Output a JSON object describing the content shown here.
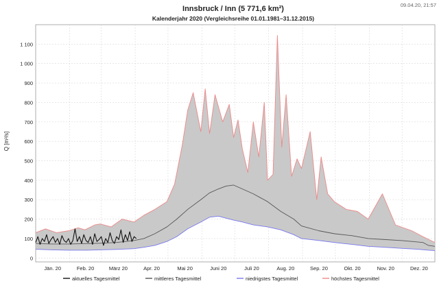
{
  "timestamp": "09.04.20, 21:57",
  "chart_data": {
    "type": "area",
    "title": "Innsbruck / Inn (5 771,6 km²)",
    "subtitle": "Kalenderjahr 2020 (Vergleichsreihe 01.01.1981–31.12.2015)",
    "ylabel": "Q [m³/s]",
    "ylim": [
      -20,
      1200
    ],
    "yticks": [
      0,
      100,
      200,
      300,
      400,
      500,
      600,
      700,
      800,
      900,
      1000,
      1100
    ],
    "ytick_labels": [
      "0",
      "100",
      "200",
      "300",
      "400",
      "500",
      "600",
      "700",
      "800",
      "900",
      "1 000",
      "1 100"
    ],
    "xlim": [
      1,
      366
    ],
    "x_unit": "day of year 2020",
    "month_labels": [
      "Jän. 20",
      "Feb. 20",
      "März 20",
      "Apr. 20",
      "Mai 20",
      "Juni 20",
      "Juli 20",
      "Aug. 20",
      "Sep. 20",
      "Okt. 20",
      "Nov. 20",
      "Dez. 20"
    ],
    "grid": true,
    "legend_position": "bottom",
    "series": [
      {
        "name": "aktuelles Tagesmittel",
        "color": "#111111",
        "x": [
          1,
          3,
          5,
          7,
          9,
          11,
          13,
          15,
          17,
          19,
          21,
          23,
          25,
          27,
          29,
          31,
          33,
          35,
          37,
          39,
          41,
          43,
          45,
          47,
          49,
          51,
          53,
          55,
          57,
          59,
          61,
          63,
          65,
          67,
          69,
          71,
          73,
          75,
          77,
          79,
          81,
          83,
          85,
          87,
          89,
          91,
          93
        ],
        "y": [
          80,
          110,
          70,
          100,
          85,
          120,
          75,
          95,
          110,
          80,
          100,
          70,
          115,
          90,
          80,
          100,
          70,
          90,
          150,
          85,
          110,
          75,
          120,
          90,
          80,
          110,
          70,
          125,
          85,
          95,
          110,
          65,
          100,
          80,
          130,
          90,
          75,
          110,
          95,
          145,
          80,
          120,
          90,
          135,
          85,
          110,
          100
        ]
      },
      {
        "name": "mittleres Tagesmittel",
        "color": "#555555",
        "x": [
          1,
          15,
          31,
          46,
          60,
          75,
          91,
          100,
          110,
          121,
          130,
          140,
          152,
          160,
          168,
          175,
          182,
          190,
          200,
          213,
          225,
          237,
          244,
          260,
          274,
          290,
          305,
          320,
          335,
          345,
          355,
          360,
          366
        ],
        "y": [
          75,
          72,
          72,
          74,
          76,
          80,
          90,
          100,
          125,
          160,
          200,
          250,
          300,
          335,
          355,
          370,
          375,
          355,
          330,
          290,
          240,
          200,
          165,
          140,
          125,
          115,
          100,
          95,
          90,
          85,
          80,
          65,
          60
        ]
      },
      {
        "name": "niedrigstes Tagesmittel",
        "color": "#7777ee",
        "x": [
          1,
          15,
          31,
          46,
          60,
          75,
          91,
          100,
          110,
          121,
          130,
          140,
          152,
          160,
          168,
          175,
          182,
          190,
          200,
          213,
          225,
          237,
          244,
          260,
          274,
          290,
          305,
          320,
          335,
          350,
          360,
          366
        ],
        "y": [
          45,
          42,
          40,
          40,
          42,
          44,
          48,
          55,
          65,
          85,
          110,
          150,
          185,
          210,
          215,
          205,
          195,
          185,
          170,
          160,
          145,
          120,
          100,
          90,
          80,
          70,
          60,
          55,
          50,
          45,
          40,
          38
        ]
      },
      {
        "name": "höchstes Tagesmittel",
        "color": "#ee8888",
        "x": [
          1,
          10,
          20,
          31,
          40,
          46,
          55,
          60,
          70,
          80,
          91,
          100,
          110,
          121,
          128,
          135,
          140,
          145,
          152,
          156,
          160,
          165,
          172,
          178,
          182,
          186,
          190,
          195,
          200,
          205,
          210,
          213,
          218,
          222,
          226,
          230,
          235,
          240,
          244,
          252,
          258,
          262,
          268,
          274,
          285,
          295,
          305,
          318,
          330,
          345,
          355,
          366
        ],
        "y": [
          130,
          150,
          130,
          140,
          155,
          145,
          170,
          175,
          160,
          200,
          185,
          220,
          250,
          290,
          380,
          580,
          760,
          850,
          650,
          870,
          640,
          840,
          700,
          790,
          620,
          710,
          560,
          440,
          700,
          520,
          800,
          400,
          430,
          1145,
          570,
          840,
          420,
          510,
          460,
          650,
          300,
          520,
          330,
          290,
          250,
          240,
          200,
          330,
          170,
          140,
          110,
          80
        ]
      }
    ]
  }
}
